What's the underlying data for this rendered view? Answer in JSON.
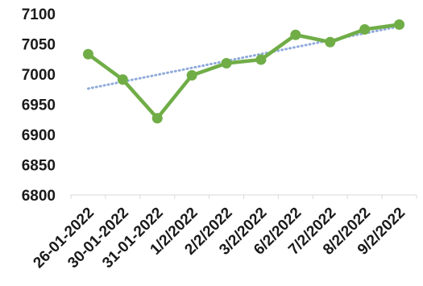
{
  "chart_data": {
    "type": "line",
    "categories": [
      "26-01-2022",
      "30-01-2022",
      "31-01-2022",
      "1/2/2022",
      "2/2/2022",
      "3/2/2022",
      "6/2/2022",
      "7/2/2022",
      "8/2/2022",
      "9/2/2022"
    ],
    "series": [
      {
        "values": [
          7033,
          6991,
          6927,
          6998,
          7018,
          7024,
          7065,
          7053,
          7074,
          7082
        ],
        "color": "#70ad47",
        "marker": "circle"
      }
    ],
    "trendline": {
      "type": "linear",
      "start": 6976,
      "end": 7079,
      "color": "#8faadc",
      "style": "dotted"
    },
    "ylim": [
      6800,
      7100
    ],
    "yticks": [
      6800,
      6850,
      6900,
      6950,
      7000,
      7050,
      7100
    ],
    "grid": false,
    "legend": "none"
  }
}
